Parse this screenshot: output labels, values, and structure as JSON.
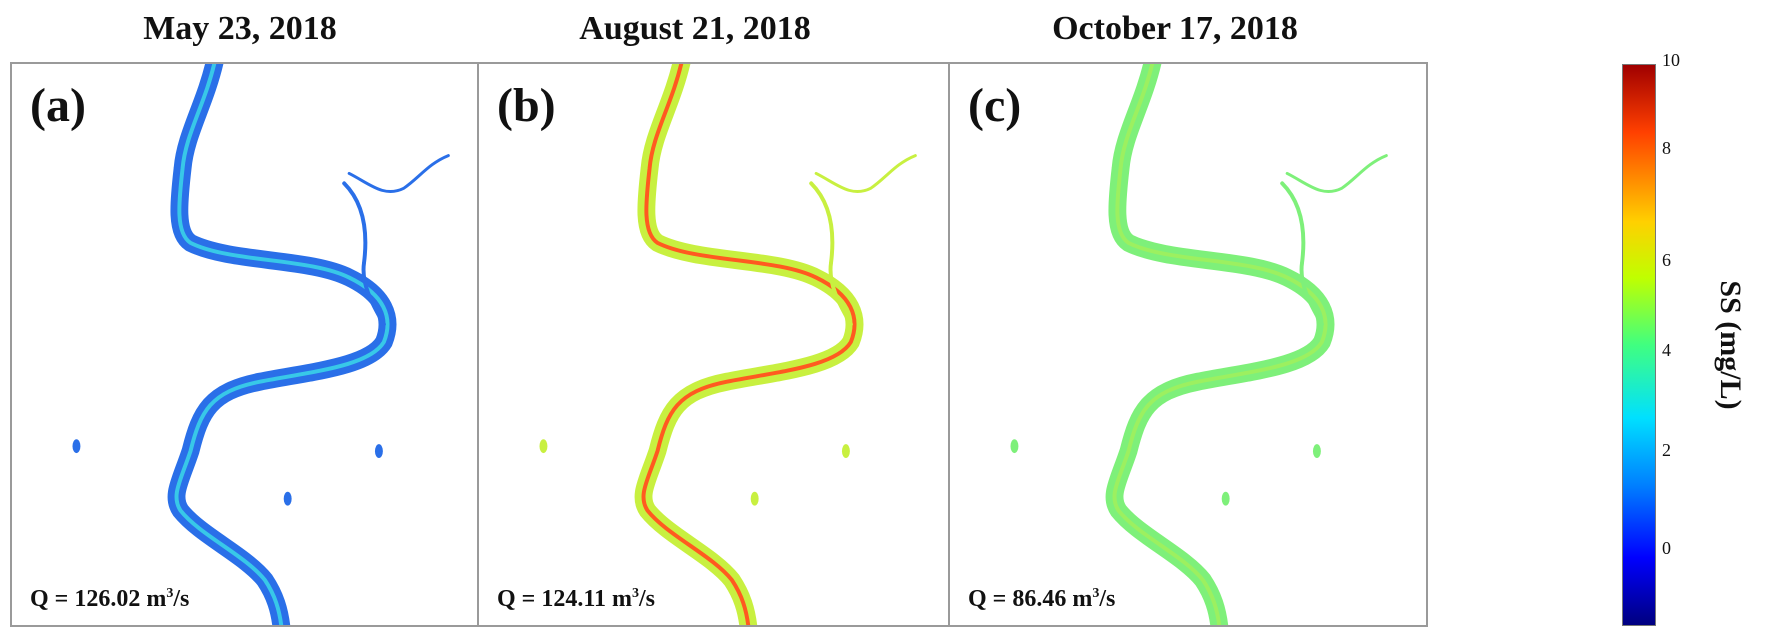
{
  "panels": [
    {
      "title": "May 23, 2018",
      "label": "(a)",
      "q_text": "Q = 126.02 m",
      "q_sup": "3",
      "q_tail": "/s",
      "river_color": "#2a6fe8",
      "accent_color": "#38c8e8"
    },
    {
      "title": "August 21, 2018",
      "label": "(b)",
      "q_text": "Q = 124.11 m",
      "q_sup": "3",
      "q_tail": "/s",
      "river_color": "#c8f040",
      "accent_color": "#ff5a20"
    },
    {
      "title": "October 17, 2018",
      "label": "(c)",
      "q_text": "Q = 86.46 m",
      "q_sup": "3",
      "q_tail": "/s",
      "river_color": "#7ef07a",
      "accent_color": "#9cf060"
    }
  ],
  "colorbar": {
    "label": "SS (mg/L)",
    "ticks": [
      "10",
      "8",
      "6",
      "4",
      "2",
      "0"
    ],
    "min": 0,
    "max": 10,
    "colormap": "jet"
  }
}
